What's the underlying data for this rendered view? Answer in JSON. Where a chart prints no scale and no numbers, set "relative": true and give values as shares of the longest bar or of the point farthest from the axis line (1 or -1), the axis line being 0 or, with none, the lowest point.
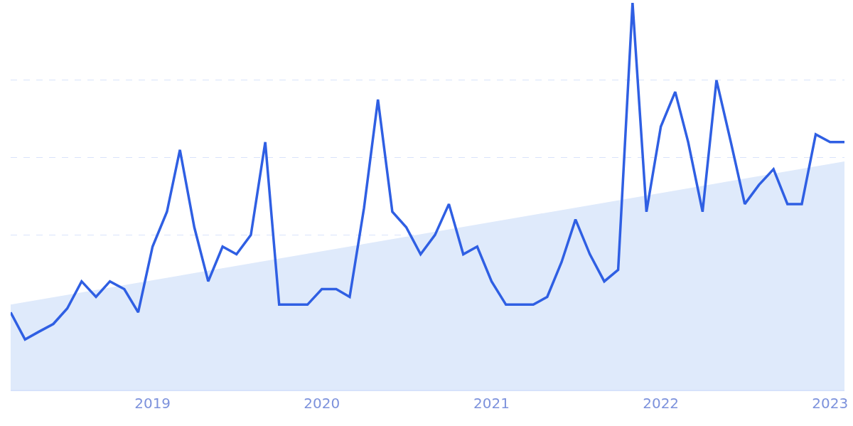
{
  "chart_data": {
    "type": "line",
    "relative": true,
    "grid": "y",
    "x": [
      "2018-03",
      "2018-04",
      "2018-05",
      "2018-06",
      "2018-07",
      "2018-08",
      "2018-09",
      "2018-10",
      "2018-11",
      "2018-12",
      "2019-01",
      "2019-02",
      "2019-03",
      "2019-04",
      "2019-05",
      "2019-06",
      "2019-07",
      "2019-08",
      "2019-09",
      "2019-10",
      "2019-11",
      "2019-12",
      "2020-01",
      "2020-02",
      "2020-03",
      "2020-04",
      "2020-05",
      "2020-06",
      "2020-07",
      "2020-08",
      "2020-09",
      "2020-10",
      "2020-11",
      "2020-12",
      "2021-01",
      "2021-02",
      "2021-03",
      "2021-04",
      "2021-05",
      "2021-06",
      "2021-07",
      "2021-08",
      "2021-09",
      "2021-10",
      "2021-11",
      "2021-12",
      "2022-01",
      "2022-02",
      "2022-03",
      "2022-04",
      "2022-05",
      "2022-06",
      "2022-07",
      "2022-08",
      "2022-09",
      "2022-10",
      "2022-11",
      "2022-12",
      "2023-01",
      "2023-02"
    ],
    "xlim": [
      "2018-03",
      "2023-02"
    ],
    "xticks": [
      "2019",
      "2020",
      "2021",
      "2022",
      "2023"
    ],
    "series": [
      {
        "type": "area",
        "color": "#dfeafb",
        "x": [
          "2018-03",
          "2023-02"
        ],
        "values": [
          0.22,
          0.59
        ]
      },
      {
        "color": "#2f5fe3",
        "values": [
          0.2,
          0.13,
          0.15,
          0.17,
          0.21,
          0.28,
          0.24,
          0.28,
          0.26,
          0.2,
          0.37,
          0.46,
          0.62,
          0.42,
          0.28,
          0.37,
          0.35,
          0.4,
          0.64,
          0.22,
          0.22,
          0.22,
          0.26,
          0.26,
          0.24,
          0.47,
          0.75,
          0.46,
          0.42,
          0.35,
          0.4,
          0.48,
          0.35,
          0.37,
          0.28,
          0.22,
          0.22,
          0.22,
          0.24,
          0.33,
          0.44,
          0.35,
          0.28,
          0.31,
          1,
          0.46,
          0.68,
          0.77,
          0.64,
          0.46,
          0.8,
          0.64,
          0.48,
          0.53,
          0.57,
          0.48,
          0.48,
          0.66,
          0.64,
          0.64
        ]
      }
    ]
  }
}
